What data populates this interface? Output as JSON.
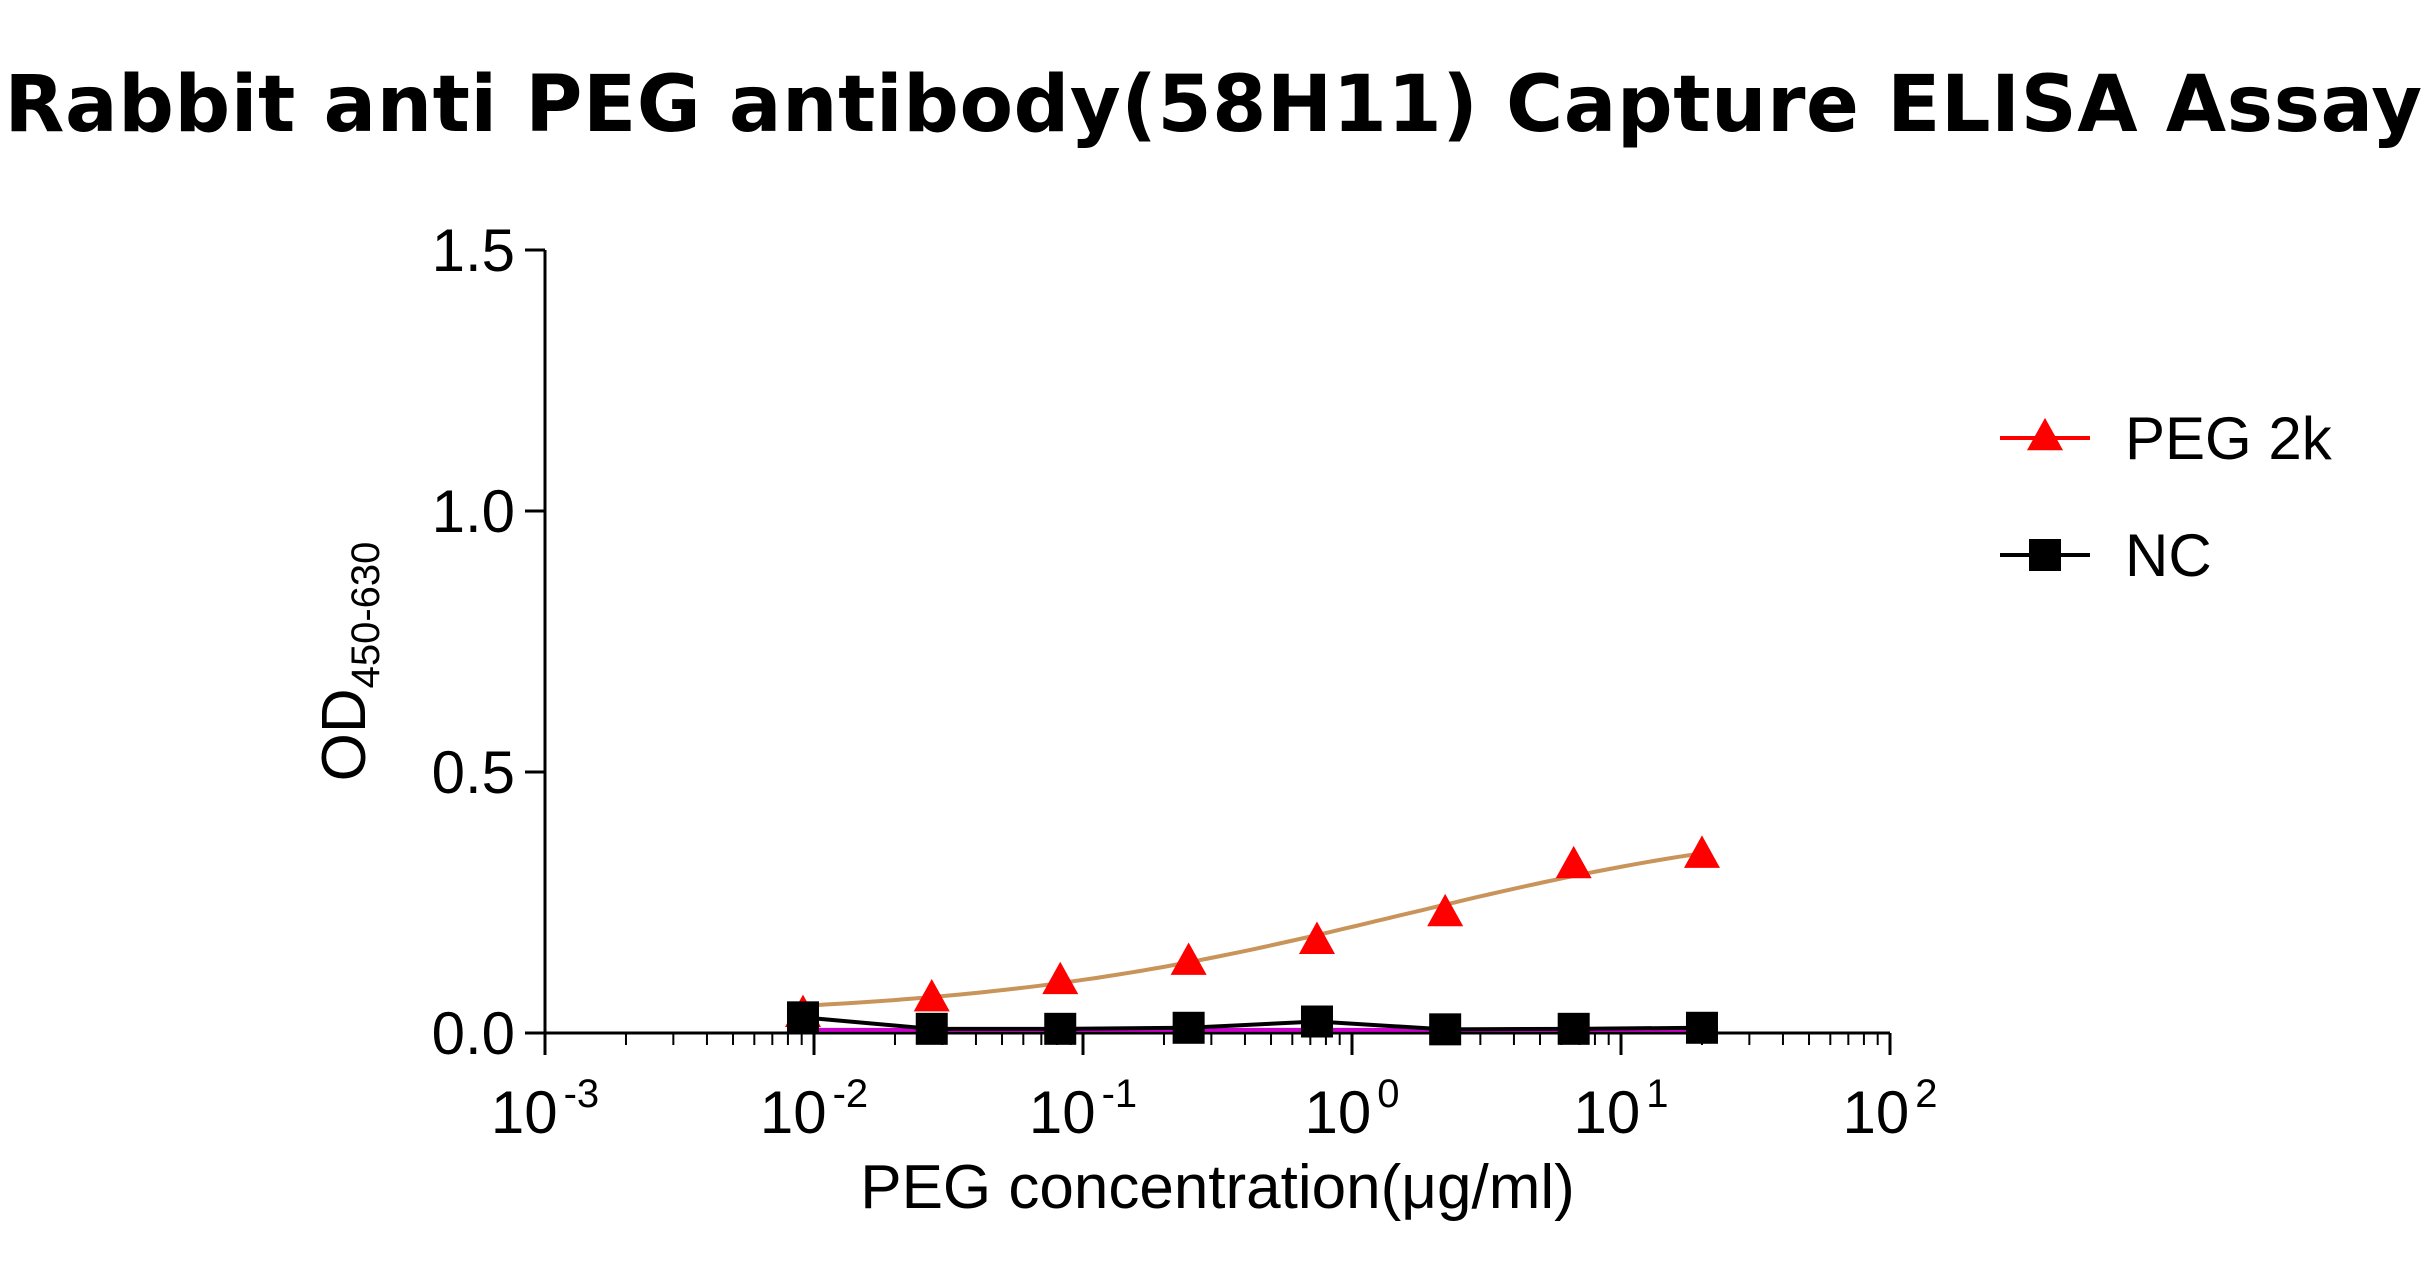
{
  "chart_data": {
    "type": "scatter",
    "title": "Rabbit anti PEG antibody(58H11) Capture ELISA Assay",
    "xlabel": "PEG concentration(μg/ml)",
    "ylabel": "OD",
    "ylabel_sub": "450-630",
    "xscale": "log",
    "xlim": [
      0.001,
      100
    ],
    "ylim": [
      0,
      1.5
    ],
    "x_ticks": [
      {
        "base": "10",
        "exp": "-3",
        "value": 0.001
      },
      {
        "base": "10",
        "exp": "-2",
        "value": 0.01
      },
      {
        "base": "10",
        "exp": "-1",
        "value": 0.1
      },
      {
        "base": "10",
        "exp": "0",
        "value": 1
      },
      {
        "base": "10",
        "exp": "1",
        "value": 10
      },
      {
        "base": "10",
        "exp": "2",
        "value": 100
      }
    ],
    "y_ticks": [
      "0.0",
      "0.5",
      "1.0",
      "1.5"
    ],
    "grid": false,
    "legend_position": "right",
    "series": [
      {
        "name": "PEG 2k",
        "marker": "triangle",
        "color": "#ff0000",
        "line_color": "#ff0000",
        "fit_color": "#c8945a",
        "x": [
          0.0091,
          0.0274,
          0.0823,
          0.247,
          0.741,
          2.22,
          6.67,
          20
        ],
        "y": [
          0.035,
          0.065,
          0.098,
          0.135,
          0.175,
          0.228,
          0.32,
          0.34
        ],
        "fit": "sigmoidal"
      },
      {
        "name": "NC",
        "marker": "square",
        "color": "#000000",
        "line_color": "#000000",
        "x": [
          0.0091,
          0.0274,
          0.0823,
          0.247,
          0.741,
          2.22,
          6.67,
          20
        ],
        "y": [
          0.03,
          0.008,
          0.008,
          0.01,
          0.022,
          0.007,
          0.008,
          0.01
        ]
      }
    ],
    "extra_line_color": "#cc00cc"
  }
}
